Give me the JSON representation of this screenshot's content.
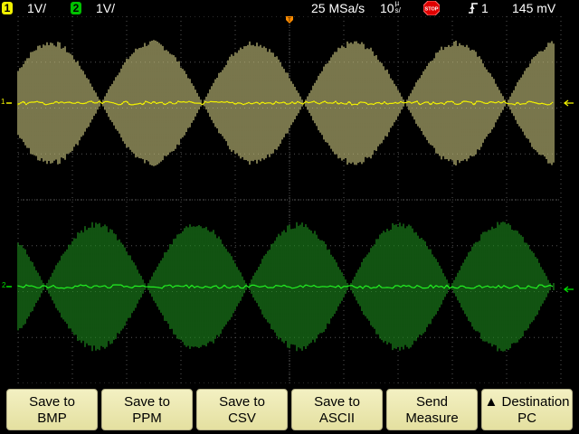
{
  "status": {
    "ch1_label": "1",
    "ch1_scale": "1V/",
    "ch2_label": "2",
    "ch2_scale": "1V/",
    "sample_rate": "25 MSa/s",
    "timebase_num": "10",
    "timebase_unit_top": "µ",
    "timebase_unit_bottom": "s/",
    "run_state": "STOP",
    "trigger_icon": "rising-edge-icon",
    "trigger_source": "1",
    "trigger_level": "145 mV"
  },
  "colors": {
    "ch1": "#f0f000",
    "ch1_fill": "#c9c47e",
    "ch2": "#00c000",
    "ch2_fill": "#1d8a1d",
    "grid": "#555555",
    "softkey": "#f0eeb8"
  },
  "markers": {
    "ch1_ground": "1",
    "ch2_ground": "2",
    "trigger_mark": "T"
  },
  "softkeys": [
    {
      "line1": "Save to",
      "line2": "BMP"
    },
    {
      "line1": "Save to",
      "line2": "PPM"
    },
    {
      "line1": "Save to",
      "line2": "CSV"
    },
    {
      "line1": "Save to",
      "line2": "ASCII"
    },
    {
      "line1": "Send",
      "line2": "Measure"
    },
    {
      "line1": "▲ Destination",
      "line2": "PC"
    }
  ]
}
